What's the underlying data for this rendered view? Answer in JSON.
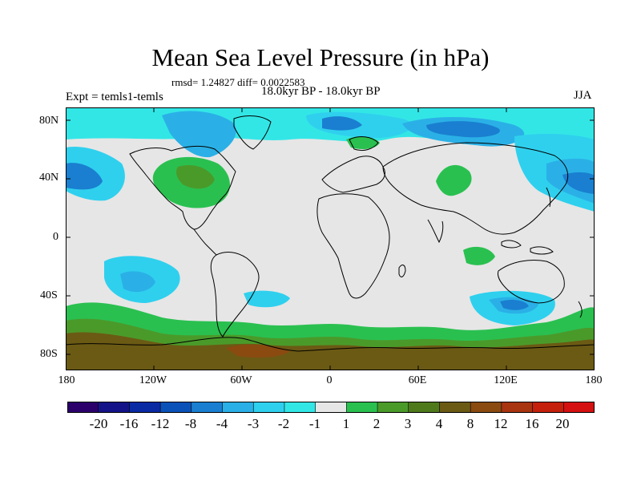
{
  "title": "Mean Sea Level Pressure (in hPa)",
  "subtitle_stats": "rmsd= 1.24827 diff= 0.0022583",
  "left_label": "Expt = temls1-temls",
  "center_label": "18.0kyr BP - 18.0kyr BP",
  "right_label": "JJA",
  "axes": {
    "lat_labels": [
      "80N",
      "40N",
      "0",
      "40S",
      "80S"
    ],
    "lon_labels": [
      "180",
      "120W",
      "60W",
      "0",
      "60E",
      "120E",
      "180"
    ]
  },
  "colorbar": {
    "labels": [
      "-20",
      "-16",
      "-12",
      "-8",
      "-4",
      "-3",
      "-2",
      "-1",
      "1",
      "2",
      "3",
      "4",
      "8",
      "12",
      "16",
      "20"
    ],
    "colors": [
      "#2b006b",
      "#141488",
      "#0a2aa4",
      "#0b52b8",
      "#1a7fd0",
      "#2ab0e6",
      "#2fd0ee",
      "#33e6e6",
      "#e6e6e6",
      "#2ac050",
      "#4a9a2a",
      "#4e7a1c",
      "#6b5a14",
      "#8a4a10",
      "#a83410",
      "#c4200c",
      "#d41010"
    ]
  },
  "colors": {
    "background_field": "#e6e6e6",
    "coast": "#000000"
  }
}
